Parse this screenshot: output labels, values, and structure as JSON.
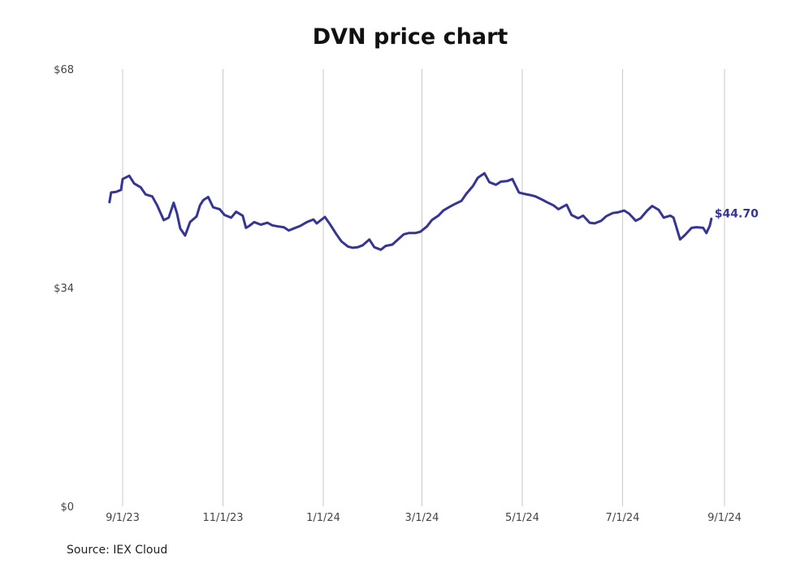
{
  "chart_data": {
    "type": "line",
    "title": "DVN price chart",
    "source": "Source: IEX Cloud",
    "series": [
      {
        "color": "#353594",
        "points": [
          [
            "2023-08-24",
            47.3
          ],
          [
            "2023-08-25",
            48.8
          ],
          [
            "2023-08-28",
            48.9
          ],
          [
            "2023-08-31",
            49.2
          ],
          [
            "2023-09-01",
            50.9
          ],
          [
            "2023-09-05",
            51.4
          ],
          [
            "2023-09-08",
            50.2
          ],
          [
            "2023-09-12",
            49.6
          ],
          [
            "2023-09-15",
            48.5
          ],
          [
            "2023-09-19",
            48.2
          ],
          [
            "2023-09-22",
            46.8
          ],
          [
            "2023-09-26",
            44.5
          ],
          [
            "2023-09-29",
            44.9
          ],
          [
            "2023-10-02",
            47.2
          ],
          [
            "2023-10-04",
            45.6
          ],
          [
            "2023-10-06",
            43.2
          ],
          [
            "2023-10-09",
            42.1
          ],
          [
            "2023-10-12",
            44.2
          ],
          [
            "2023-10-16",
            45.1
          ],
          [
            "2023-10-18",
            46.8
          ],
          [
            "2023-10-20",
            47.6
          ],
          [
            "2023-10-23",
            48.1
          ],
          [
            "2023-10-26",
            46.5
          ],
          [
            "2023-10-30",
            46.2
          ],
          [
            "2023-11-02",
            45.3
          ],
          [
            "2023-11-06",
            44.9
          ],
          [
            "2023-11-09",
            45.8
          ],
          [
            "2023-11-13",
            45.2
          ],
          [
            "2023-11-15",
            43.3
          ],
          [
            "2023-11-17",
            43.6
          ],
          [
            "2023-11-20",
            44.2
          ],
          [
            "2023-11-24",
            43.8
          ],
          [
            "2023-11-28",
            44.1
          ],
          [
            "2023-12-01",
            43.7
          ],
          [
            "2023-12-05",
            43.5
          ],
          [
            "2023-12-08",
            43.4
          ],
          [
            "2023-12-11",
            42.9
          ],
          [
            "2023-12-14",
            43.2
          ],
          [
            "2023-12-18",
            43.6
          ],
          [
            "2023-12-20",
            43.9
          ],
          [
            "2023-12-22",
            44.2
          ],
          [
            "2023-12-26",
            44.6
          ],
          [
            "2023-12-28",
            44.0
          ],
          [
            "2024-01-02",
            45.0
          ],
          [
            "2024-01-05",
            43.9
          ],
          [
            "2024-01-09",
            42.3
          ],
          [
            "2024-01-12",
            41.2
          ],
          [
            "2024-01-16",
            40.4
          ],
          [
            "2024-01-19",
            40.2
          ],
          [
            "2024-01-22",
            40.3
          ],
          [
            "2024-01-25",
            40.6
          ],
          [
            "2024-01-29",
            41.5
          ],
          [
            "2024-02-01",
            40.3
          ],
          [
            "2024-02-05",
            39.9
          ],
          [
            "2024-02-08",
            40.5
          ],
          [
            "2024-02-12",
            40.7
          ],
          [
            "2024-02-15",
            41.4
          ],
          [
            "2024-02-19",
            42.3
          ],
          [
            "2024-02-22",
            42.5
          ],
          [
            "2024-02-26",
            42.5
          ],
          [
            "2024-02-29",
            42.7
          ],
          [
            "2024-03-04",
            43.5
          ],
          [
            "2024-03-07",
            44.5
          ],
          [
            "2024-03-11",
            45.2
          ],
          [
            "2024-03-14",
            46.0
          ],
          [
            "2024-03-18",
            46.6
          ],
          [
            "2024-03-21",
            47.0
          ],
          [
            "2024-03-25",
            47.5
          ],
          [
            "2024-03-28",
            48.6
          ],
          [
            "2024-04-01",
            49.8
          ],
          [
            "2024-04-04",
            51.1
          ],
          [
            "2024-04-08",
            51.8
          ],
          [
            "2024-04-11",
            50.4
          ],
          [
            "2024-04-15",
            50.0
          ],
          [
            "2024-04-18",
            50.5
          ],
          [
            "2024-04-22",
            50.6
          ],
          [
            "2024-04-25",
            50.9
          ],
          [
            "2024-04-29",
            48.8
          ],
          [
            "2024-05-02",
            48.6
          ],
          [
            "2024-05-06",
            48.4
          ],
          [
            "2024-05-09",
            48.2
          ],
          [
            "2024-05-13",
            47.7
          ],
          [
            "2024-05-16",
            47.3
          ],
          [
            "2024-05-20",
            46.8
          ],
          [
            "2024-05-23",
            46.2
          ],
          [
            "2024-05-28",
            46.9
          ],
          [
            "2024-05-31",
            45.3
          ],
          [
            "2024-06-04",
            44.8
          ],
          [
            "2024-06-07",
            45.2
          ],
          [
            "2024-06-11",
            44.1
          ],
          [
            "2024-06-14",
            44.0
          ],
          [
            "2024-06-18",
            44.4
          ],
          [
            "2024-06-21",
            45.1
          ],
          [
            "2024-06-25",
            45.6
          ],
          [
            "2024-06-28",
            45.7
          ],
          [
            "2024-07-02",
            46.0
          ],
          [
            "2024-07-05",
            45.5
          ],
          [
            "2024-07-09",
            44.4
          ],
          [
            "2024-07-12",
            44.8
          ],
          [
            "2024-07-16",
            46.0
          ],
          [
            "2024-07-19",
            46.7
          ],
          [
            "2024-07-23",
            46.1
          ],
          [
            "2024-07-26",
            44.9
          ],
          [
            "2024-07-30",
            45.2
          ],
          [
            "2024-08-01",
            44.9
          ],
          [
            "2024-08-05",
            41.5
          ],
          [
            "2024-08-08",
            42.2
          ],
          [
            "2024-08-12",
            43.3
          ],
          [
            "2024-08-15",
            43.4
          ],
          [
            "2024-08-19",
            43.3
          ],
          [
            "2024-08-21",
            42.5
          ],
          [
            "2024-08-23",
            43.6
          ],
          [
            "2024-08-24",
            44.7
          ]
        ]
      }
    ],
    "end_label": "$44.70",
    "x_ticks": [
      {
        "date": "2023-09-01",
        "label": "9/1/23"
      },
      {
        "date": "2023-11-01",
        "label": "11/1/23"
      },
      {
        "date": "2024-01-01",
        "label": "1/1/24"
      },
      {
        "date": "2024-03-01",
        "label": "3/1/24"
      },
      {
        "date": "2024-05-01",
        "label": "5/1/24"
      },
      {
        "date": "2024-07-01",
        "label": "7/1/24"
      },
      {
        "date": "2024-09-01",
        "label": "9/1/24"
      }
    ],
    "y_ticks": [
      {
        "value": 0,
        "label": "$0"
      },
      {
        "value": 34,
        "label": "$34"
      },
      {
        "value": 68,
        "label": "$68"
      }
    ],
    "ylim": [
      0,
      68
    ],
    "xlim": [
      "2023-08-01",
      "2024-09-01"
    ],
    "grid": "vertical"
  }
}
